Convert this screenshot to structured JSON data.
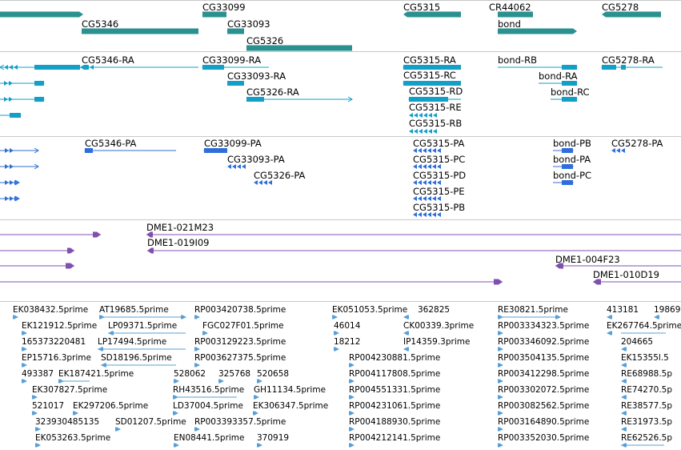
{
  "colors": {
    "gene": "#2a9090",
    "transcript": "#12a0c8",
    "protein": "#2f6ed8",
    "clone": "#8050b0",
    "est": "#5a9fd4",
    "divider": "#c8c8c8"
  },
  "tracks": {
    "genes": {
      "labels": [
        "CG33099",
        "CG5315",
        "CR44062",
        "CG5278",
        "CG5346",
        "CG33093",
        "bond",
        "CG5326"
      ]
    },
    "transcripts": {
      "labels": [
        "CG5346-RA",
        "CG33099-RA",
        "CG5315-RA",
        "bond-RB",
        "CG5278-RA",
        "CG33093-RA",
        "CG5315-RC",
        "bond-RA",
        "CG5326-RA",
        "CG5315-RD",
        "bond-RC",
        "CG5315-RE",
        "CG5315-RB"
      ]
    },
    "proteins": {
      "labels": [
        "CG5346-PA",
        "CG33099-PA",
        "CG5315-PA",
        "bond-PB",
        "CG5278-PA",
        "CG33093-PA",
        "CG5315-PC",
        "bond-PA",
        "CG5326-PA",
        "CG5315-PD",
        "bond-PC",
        "CG5315-PE",
        "CG5315-PB"
      ]
    },
    "clones": {
      "labels": [
        "DME1-021M23",
        "DME1-019I09",
        "DME1-004F23",
        "DME1-010D19"
      ]
    },
    "ests": {
      "labels": [
        "EK038432.5prime",
        "AT19685.5prime",
        "RP003420738.5prime",
        "EK051053.5prime",
        "362825",
        "RE30821.5prime",
        "413181",
        "19869",
        "EK121912.5prime",
        "LP09371.5prime",
        "FGC027F01.5prime",
        "46014",
        "CK00339.3prime",
        "RP003334323.5prime",
        "EK267764.5prime",
        "165373220481",
        "LP17494.5prime",
        "RP003129223.5prime",
        "18212",
        "IP14359.3prime",
        "RP003346092.5prime",
        "204665",
        "EP15716.3prime",
        "SD18196.5prime",
        "RP003627375.5prime",
        "RP004230881.5prime",
        "RP003504135.5prime",
        "EK15355l.5",
        "493387",
        "EK187421.5prime",
        "528062",
        "325768",
        "520658",
        "RP004117808.5prime",
        "RP003412298.5prime",
        "RE68988.5p",
        "EK307827.5prime",
        "RH43516.5prime",
        "GH11134.5prime",
        "RP004551331.5prime",
        "RP003302072.5prime",
        "RE74270.5p",
        "521017",
        "EK297206.5prime",
        "LD37004.5prime",
        "EK306347.5prime",
        "RP004231061.5prime",
        "RP003082562.5prime",
        "RE38577.5p",
        "323930485135",
        "SD01207.5prime",
        "RP003393357.5prime",
        "RP004188930.5prime",
        "RP003164890.5prime",
        "RE31973.5p",
        "EK053263.5prime",
        "EN08441.5prime",
        "370919",
        "RP004212141.5prime",
        "RP003352030.5prime",
        "RE62526.5p"
      ]
    }
  }
}
